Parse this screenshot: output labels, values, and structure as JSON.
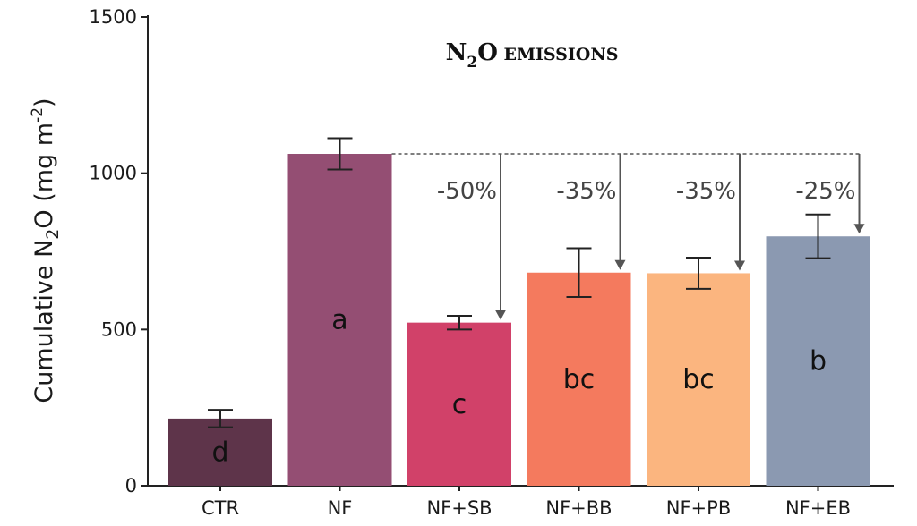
{
  "chart_data": {
    "type": "bar",
    "title": {
      "main": "N",
      "sub": "2",
      "rest": "O",
      "small": " EMISSIONS"
    },
    "ylabel": {
      "pre": "Cumulative N",
      "sub": "2",
      "mid": "O (mg m",
      "sup": "-2",
      "post": ")"
    },
    "xlabel": "",
    "ylim": [
      0,
      1500
    ],
    "yticks": [
      "0",
      "500",
      "1000",
      "1500"
    ],
    "categories": [
      "CTR",
      "NF",
      "NF+SB",
      "NF+BB",
      "NF+PB",
      "NF+EB"
    ],
    "values": [
      215,
      1062,
      522,
      682,
      680,
      798
    ],
    "error": [
      28,
      50,
      22,
      78,
      50,
      70
    ],
    "letters": [
      "d",
      "a",
      "c",
      "bc",
      "bc",
      "b"
    ],
    "colors": [
      "#5e344a",
      "#944e73",
      "#d14169",
      "#f47a5e",
      "#fbb57f",
      "#8b99b1"
    ],
    "reductions": [
      {
        "category": "NF+SB",
        "label": "-50%"
      },
      {
        "category": "NF+BB",
        "label": "-35%"
      },
      {
        "category": "NF+PB",
        "label": "-35%"
      },
      {
        "category": "NF+EB",
        "label": "-25%"
      }
    ]
  }
}
